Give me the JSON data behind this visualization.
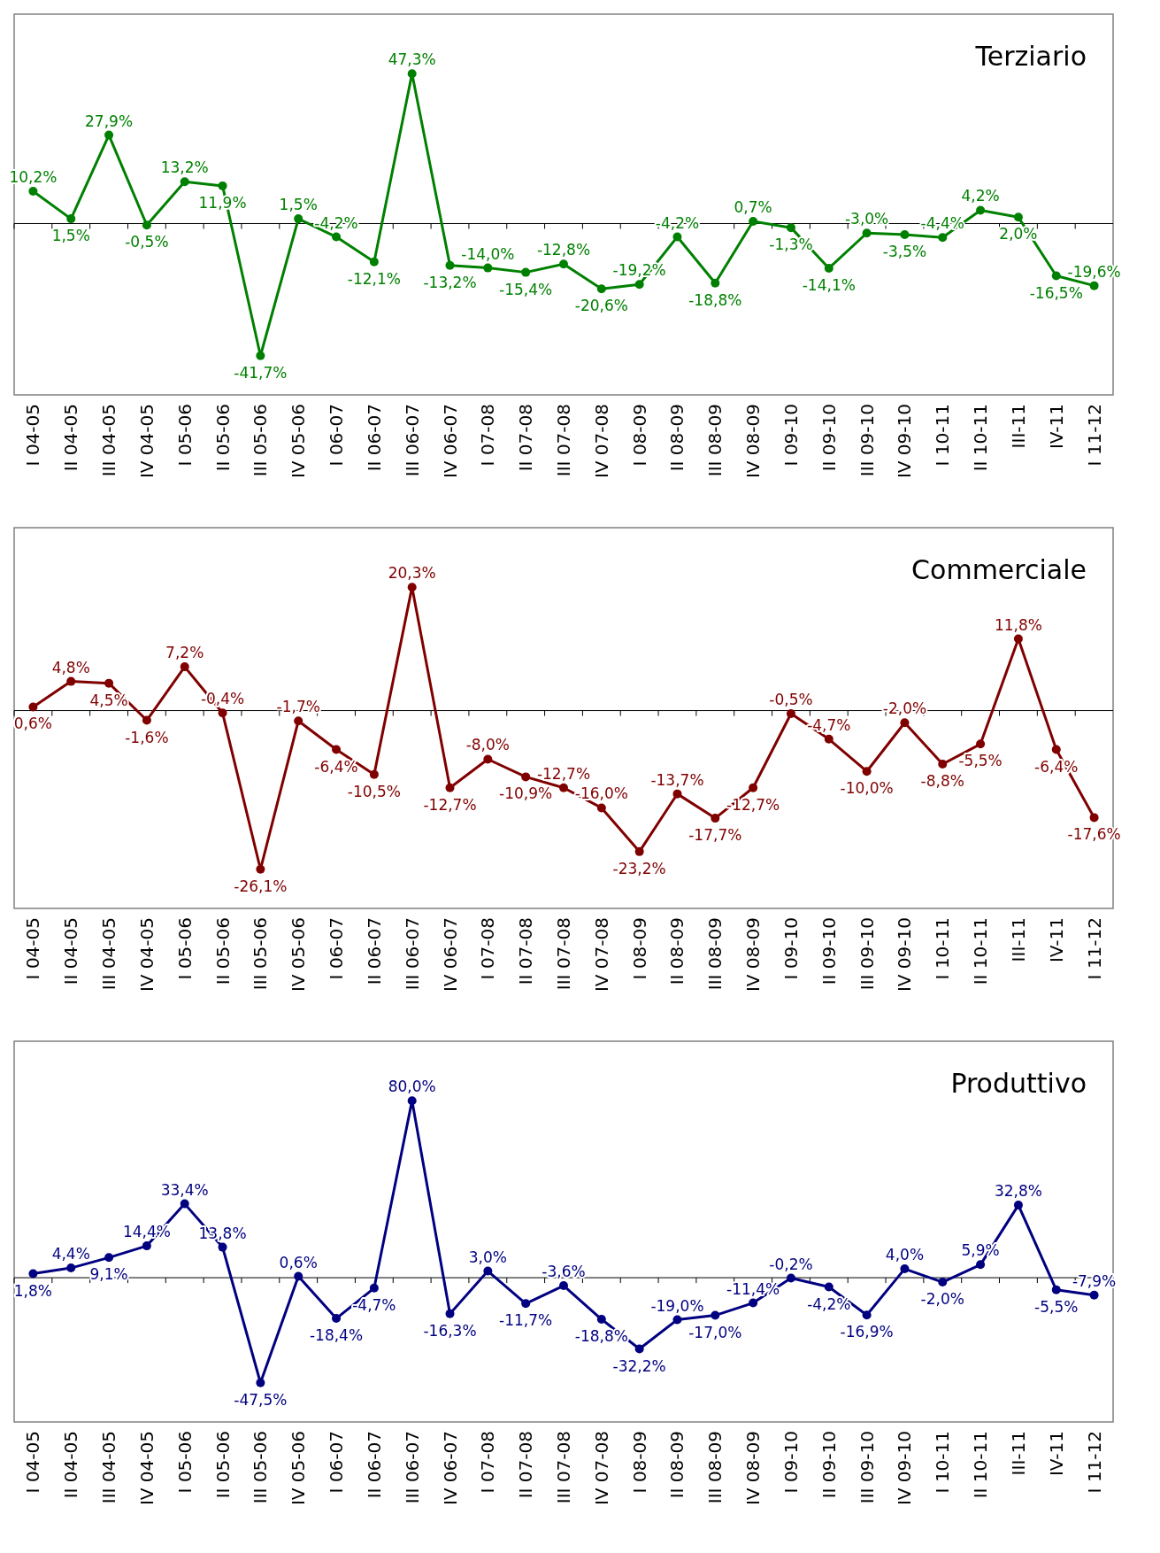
{
  "chart_data": [
    {
      "type": "line",
      "title": "Terziario",
      "categories": [
        "I 04-05",
        "II 04-05",
        "III 04-05",
        "IV 04-05",
        "I 05-06",
        "II 05-06",
        "III 05-06",
        "IV 05-06",
        "I 06-07",
        "II 06-07",
        "III 06-07",
        "IV 06-07",
        "I 07-08",
        "II 07-08",
        "III 07-08",
        "IV 07-08",
        "I 08-09",
        "II 08-09",
        "III 08-09",
        "IV 08-09",
        "I 09-10",
        "II 09-10",
        "III 09-10",
        "IV 09-10",
        "I 10-11",
        "II 10-11",
        "III-11",
        "IV-11",
        "I 11-12"
      ],
      "marker": "circle",
      "series": [
        {
          "color": "#008000",
          "values": [
            10.2,
            1.5,
            27.9,
            -0.5,
            13.2,
            11.9,
            -41.7,
            1.5,
            -4.2,
            -12.1,
            47.3,
            -13.2,
            -14.0,
            -15.4,
            -12.8,
            -20.6,
            -19.2,
            -4.2,
            -18.8,
            0.7,
            -1.3,
            -14.1,
            -3.0,
            -3.5,
            -4.4,
            4.2,
            2.0,
            -16.5,
            -19.6
          ],
          "value_labels": [
            "10,2%",
            "1,5%",
            "27,9%",
            "-0,5%",
            "13,2%",
            "11,9%",
            "-41,7%",
            "1,5%",
            "-4,2%",
            "-12,1%",
            "47,3%",
            "-13,2%",
            "-14,0%",
            "-15,4%",
            "-12,8%",
            "-20,6%",
            "-19,2%",
            "-4,2%",
            "-18,8%",
            "0,7%",
            "-1,3%",
            "-14,1%",
            "-3,0%",
            "-3,5%",
            "-4,4%",
            "4,2%",
            "2,0%",
            "-16,5%",
            "-19,6%"
          ]
        }
      ]
    },
    {
      "type": "line",
      "title": "Commerciale",
      "categories": [
        "I 04-05",
        "II 04-05",
        "III 04-05",
        "IV 04-05",
        "I 05-06",
        "II 05-06",
        "III 05-06",
        "IV 05-06",
        "I 06-07",
        "II 06-07",
        "III 06-07",
        "IV 06-07",
        "I 07-08",
        "II 07-08",
        "III 07-08",
        "IV 07-08",
        "I 08-09",
        "II 08-09",
        "III 08-09",
        "IV 08-09",
        "I 09-10",
        "II 09-10",
        "III 09-10",
        "IV 09-10",
        "I 10-11",
        "II 10-11",
        "III-11",
        "IV-11",
        "I 11-12"
      ],
      "marker": "circle",
      "series": [
        {
          "color": "#800000",
          "values": [
            0.6,
            4.8,
            4.5,
            -1.6,
            7.2,
            -0.4,
            -26.1,
            -1.7,
            -6.4,
            -10.5,
            20.3,
            -12.7,
            -8.0,
            -10.9,
            -12.7,
            -16.0,
            -23.2,
            -13.7,
            -17.7,
            -12.7,
            -0.5,
            -4.7,
            -10.0,
            -2.0,
            -8.8,
            -5.5,
            11.8,
            -6.4,
            -17.6
          ],
          "value_labels": [
            "0,6%",
            "4,8%",
            "4,5%",
            "-1,6%",
            "7,2%",
            "-0,4%",
            "-26,1%",
            "-1,7%",
            "-6,4%",
            "-10,5%",
            "20,3%",
            "-12,7%",
            "-8,0%",
            "-10,9%",
            "-12,7%",
            "-16,0%",
            "-23,2%",
            "-13,7%",
            "-17,7%",
            "-12,7%",
            "-0,5%",
            "-4,7%",
            "-10,0%",
            "-2,0%",
            "-8,8%",
            "-5,5%",
            "11,8%",
            "-6,4%",
            "-17,6%"
          ]
        }
      ]
    },
    {
      "type": "line",
      "title": "Produttivo",
      "categories": [
        "I 04-05",
        "II 04-05",
        "III 04-05",
        "IV 04-05",
        "I 05-06",
        "II 05-06",
        "III 05-06",
        "IV 05-06",
        "I 06-07",
        "II 06-07",
        "III 06-07",
        "IV 06-07",
        "I 07-08",
        "II 07-08",
        "III 07-08",
        "IV 07-08",
        "I 08-09",
        "II 08-09",
        "III 08-09",
        "IV 08-09",
        "I 09-10",
        "II 09-10",
        "III 09-10",
        "IV 09-10",
        "I 10-11",
        "II 10-11",
        "III-11",
        "IV-11",
        "I 11-12"
      ],
      "marker": "circle",
      "series": [
        {
          "color": "#000080",
          "values": [
            1.8,
            4.4,
            9.1,
            14.4,
            33.4,
            13.8,
            -47.5,
            0.6,
            -18.4,
            -4.7,
            80.0,
            -16.3,
            3.0,
            -11.7,
            -3.6,
            -18.8,
            -32.2,
            -19.0,
            -17.0,
            -11.4,
            -0.2,
            -4.2,
            -16.9,
            4.0,
            -2.0,
            5.9,
            32.8,
            -5.5,
            -7.9
          ],
          "value_labels": [
            "1,8%",
            "4,4%",
            "9,1%",
            "14,4%",
            "33,4%",
            "13,8%",
            "-47,5%",
            "0,6%",
            "-18,4%",
            "-4,7%",
            "80,0%",
            "-16,3%",
            "3,0%",
            "-11,7%",
            "-3,6%",
            "-18,8%",
            "-32,2%",
            "-19,0%",
            "-17,0%",
            "-11,4%",
            "-0,2%",
            "-4,2%",
            "-16,9%",
            "4,0%",
            "-2,0%",
            "5,9%",
            "32,8%",
            "-5,5%",
            "-7,9%"
          ]
        }
      ]
    }
  ]
}
